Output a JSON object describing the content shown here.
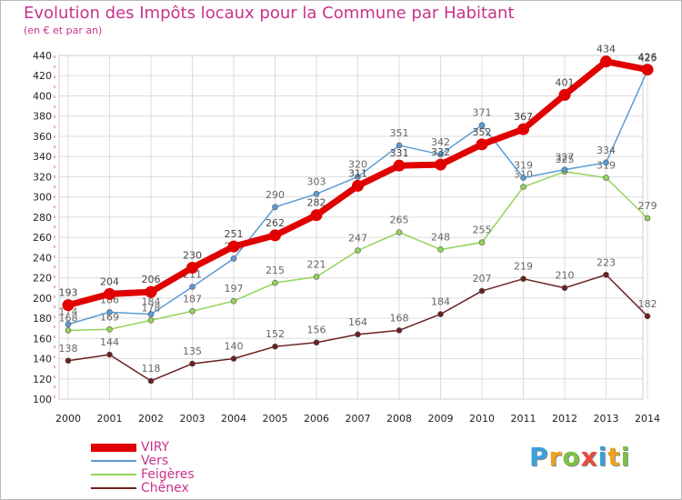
{
  "chart_data": {
    "type": "line",
    "title": "Evolution des Impôts locaux pour la Commune par Habitant",
    "subtitle": "(en € et par an)",
    "x": [
      "2000",
      "2001",
      "2002",
      "2003",
      "2004",
      "2005",
      "2006",
      "2007",
      "2008",
      "2009",
      "2010",
      "2011",
      "2012",
      "2013",
      "2014"
    ],
    "ylim": [
      100,
      440
    ],
    "yticks": [
      100,
      120,
      140,
      160,
      180,
      200,
      220,
      240,
      260,
      280,
      300,
      320,
      340,
      360,
      380,
      400,
      420,
      440
    ],
    "grid": true,
    "series": [
      {
        "name": "Chênex",
        "color": "#6b1f1f",
        "values": [
          138,
          144,
          118,
          135,
          140,
          152,
          156,
          164,
          168,
          184,
          207,
          219,
          210,
          223,
          182
        ]
      },
      {
        "name": "Feigères",
        "color": "#93d35b",
        "values": [
          168,
          169,
          178,
          187,
          197,
          215,
          221,
          247,
          265,
          248,
          255,
          310,
          325,
          319,
          279
        ]
      },
      {
        "name": "Vers",
        "color": "#5b9bd5",
        "values": [
          174,
          186,
          184,
          211,
          239,
          290,
          303,
          320,
          351,
          342,
          371,
          319,
          327,
          334,
          425
        ]
      },
      {
        "name": "VIRY",
        "color": "#e00000",
        "values": [
          193,
          204,
          206,
          230,
          251,
          262,
          282,
          311,
          331,
          332,
          352,
          367,
          401,
          434,
          426
        ]
      }
    ],
    "legend": [
      "VIRY",
      "Vers",
      "Feigères",
      "Chênex"
    ]
  },
  "brand": {
    "letters": [
      "P",
      "r",
      "o",
      "x",
      "i",
      "t",
      "i"
    ],
    "colors": [
      "#3aa0dc",
      "#f0a020",
      "#7cc242",
      "#e84a3c",
      "#3aa0dc",
      "#f0a020",
      "#7cc242"
    ]
  }
}
